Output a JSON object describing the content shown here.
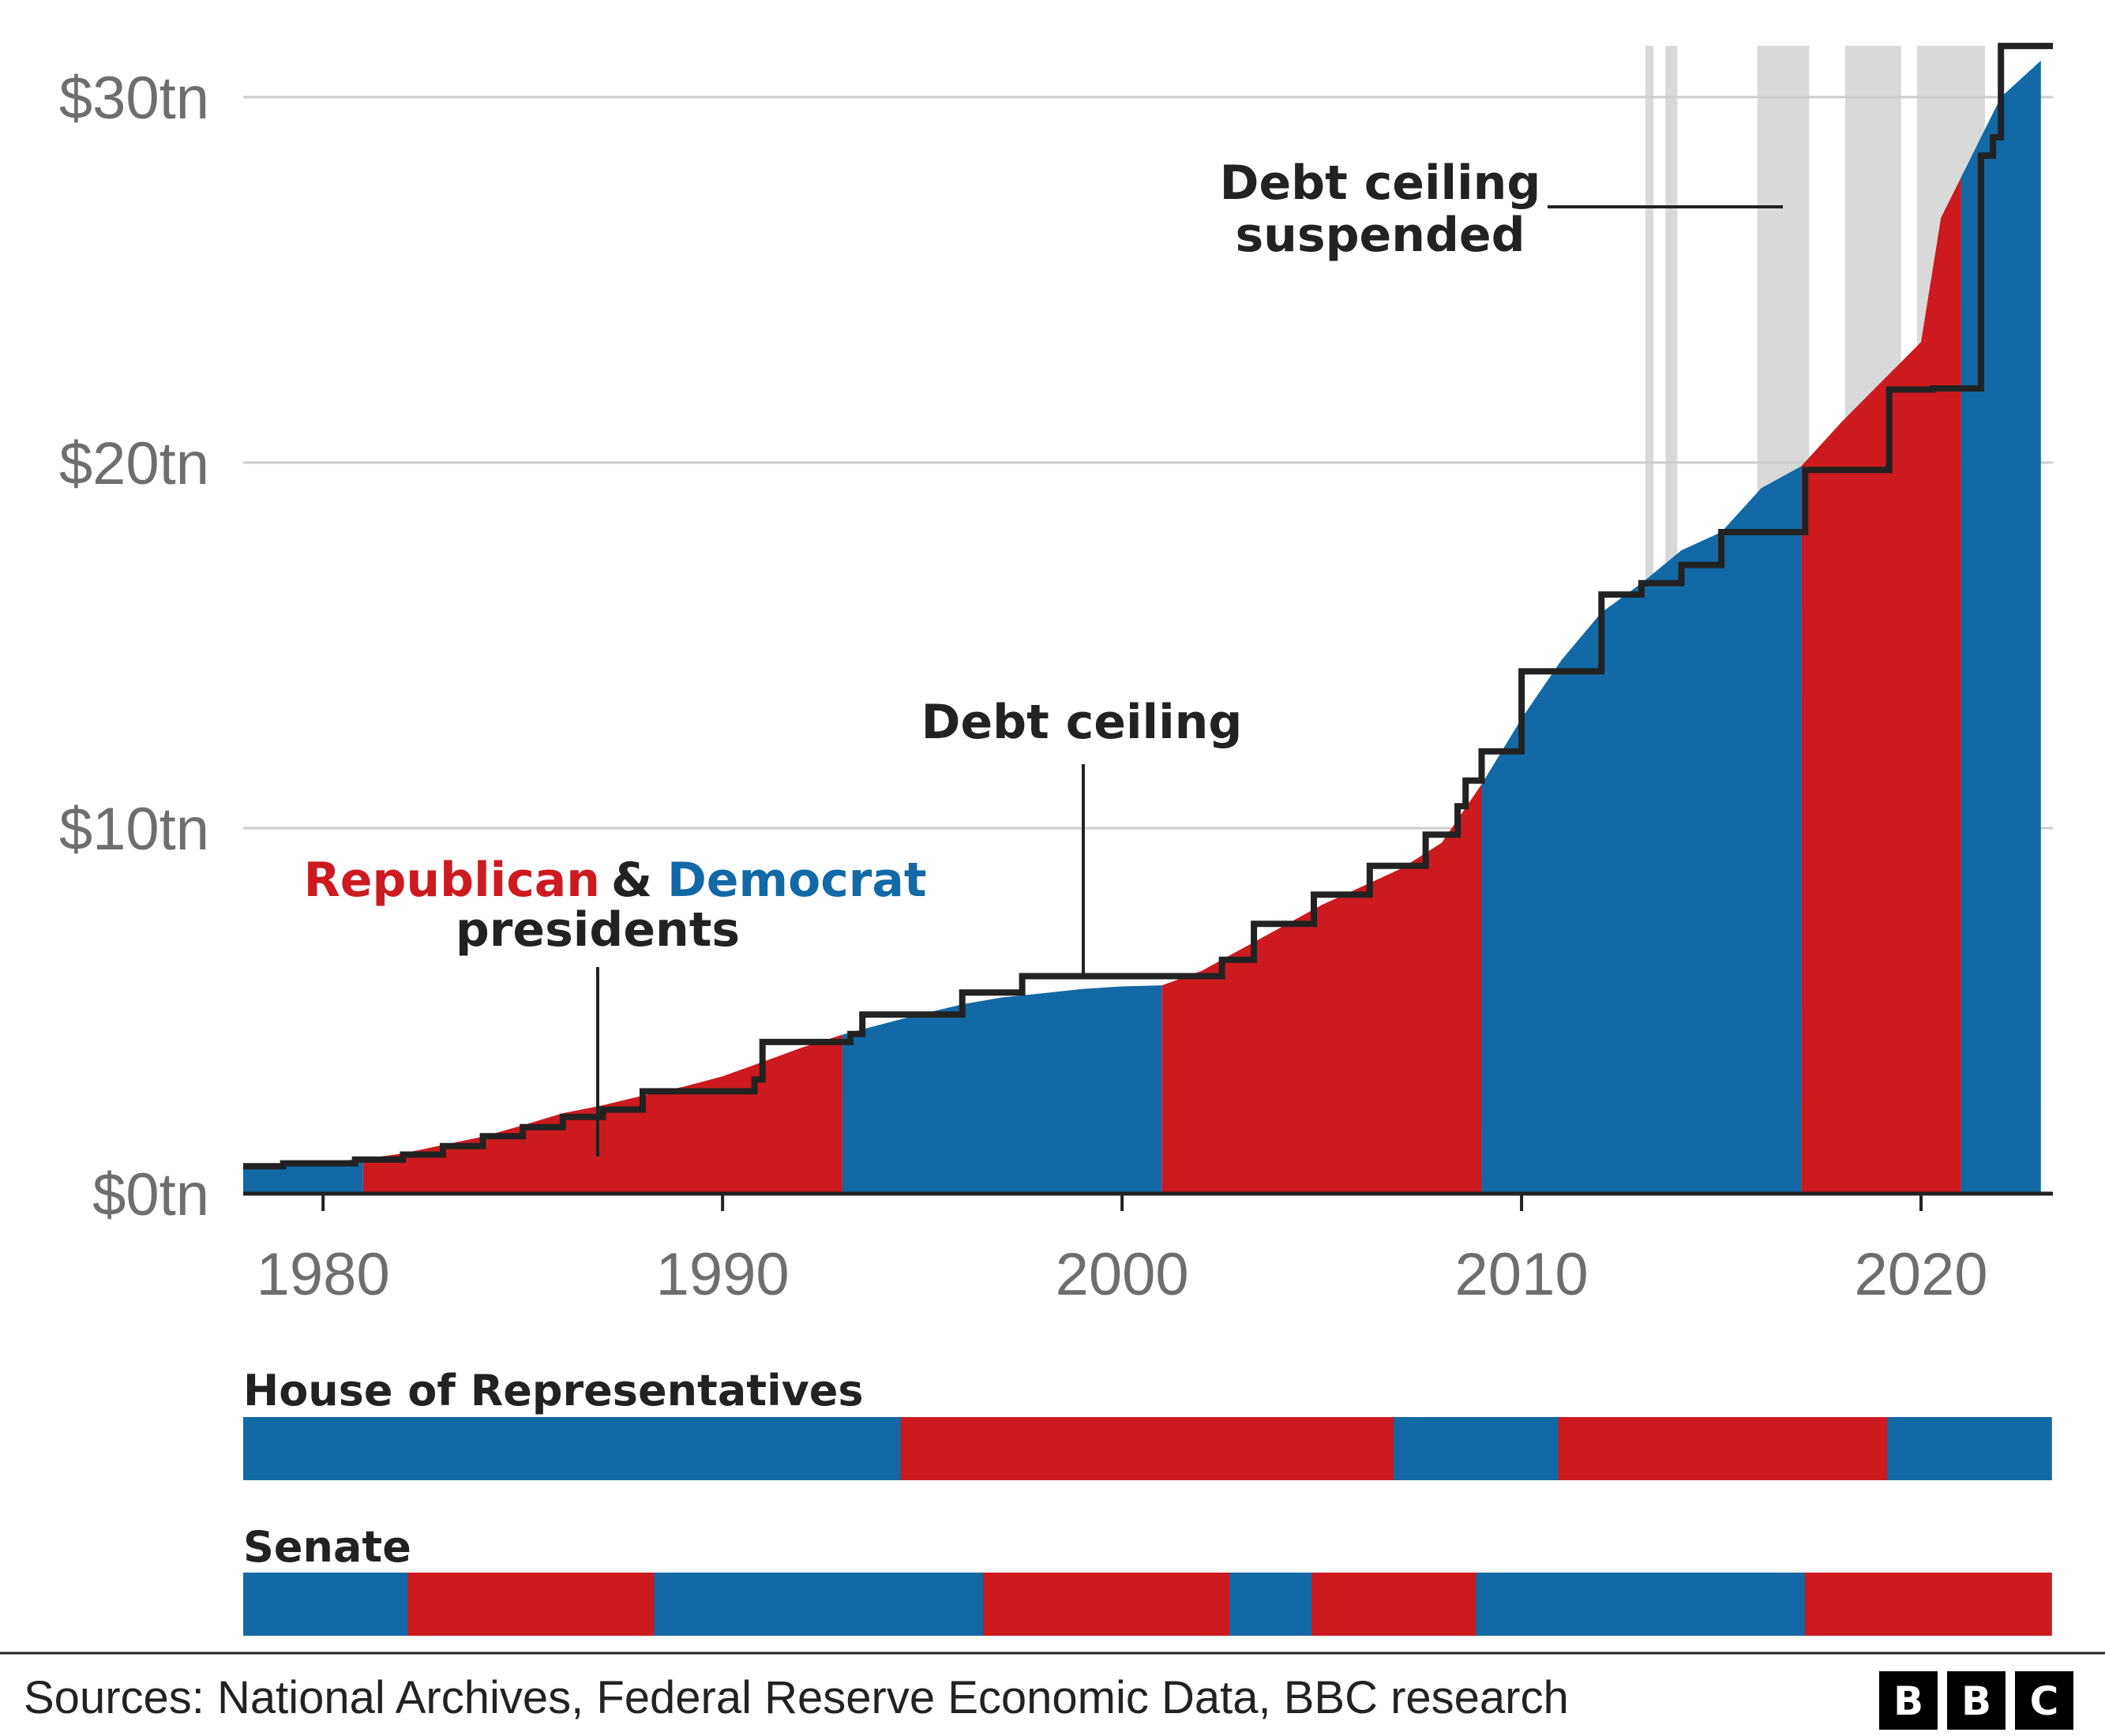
{
  "colors": {
    "republican": "#cc1a1f",
    "democrat": "#1269a6",
    "suspended": "#d9d9d9",
    "ceiling": "#222222",
    "grid": "#cccccc",
    "axis": "#222222",
    "text": "#222222",
    "tick": "#6e6e6e"
  },
  "chart_data": {
    "type": "area",
    "ylim": [
      0,
      30
    ],
    "xlim": [
      1978,
      2023.3
    ],
    "yticks": [
      0,
      10,
      20,
      30
    ],
    "ytick_labels": [
      "$0tn",
      "$10tn",
      "$20tn",
      "$30tn"
    ],
    "xticks": [
      1980,
      1990,
      2000,
      2010,
      2020
    ],
    "xtick_labels": [
      "1980",
      "1990",
      "2000",
      "2010",
      "2020"
    ],
    "grid": true,
    "debt": {
      "x": [
        1978,
        1979,
        1980,
        1981,
        1982,
        1983,
        1984,
        1985,
        1986,
        1987,
        1988,
        1989,
        1990,
        1991,
        1992,
        1993,
        1994,
        1995,
        1996,
        1997,
        1998,
        1999,
        2000,
        2001,
        2002,
        2003,
        2004,
        2005,
        2006,
        2007,
        2008,
        2009,
        2010,
        2011,
        2012,
        2013,
        2014,
        2015,
        2016,
        2017,
        2018,
        2019,
        2020,
        2020.5,
        2021,
        2022,
        2023
      ],
      "y": [
        0.75,
        0.8,
        0.86,
        0.95,
        1.1,
        1.33,
        1.56,
        1.87,
        2.2,
        2.42,
        2.68,
        2.92,
        3.21,
        3.6,
        4.0,
        4.35,
        4.64,
        4.92,
        5.18,
        5.37,
        5.48,
        5.6,
        5.67,
        5.7,
        6.1,
        6.7,
        7.3,
        7.9,
        8.4,
        8.9,
        9.6,
        11.2,
        13.0,
        14.6,
        15.9,
        16.7,
        17.6,
        18.1,
        19.3,
        19.9,
        21.1,
        22.2,
        23.3,
        26.7,
        27.8,
        30.0,
        31.0
      ]
    },
    "presidents": [
      {
        "party": "democrat",
        "start": 1978,
        "end": 1981
      },
      {
        "party": "republican",
        "start": 1981,
        "end": 1993
      },
      {
        "party": "democrat",
        "start": 1993,
        "end": 2001
      },
      {
        "party": "republican",
        "start": 2001,
        "end": 2009
      },
      {
        "party": "democrat",
        "start": 2009,
        "end": 2017
      },
      {
        "party": "republican",
        "start": 2017,
        "end": 2021
      },
      {
        "party": "democrat",
        "start": 2021,
        "end": 2023
      }
    ],
    "debt_ceiling": {
      "steps": [
        [
          1978,
          0.75
        ],
        [
          1979,
          0.83
        ],
        [
          1980.8,
          0.93
        ],
        [
          1982,
          1.07
        ],
        [
          1983,
          1.3
        ],
        [
          1984,
          1.57
        ],
        [
          1985,
          1.82
        ],
        [
          1986,
          2.1
        ],
        [
          1987,
          2.3
        ],
        [
          1988,
          2.8
        ],
        [
          1990.8,
          3.12
        ],
        [
          1991,
          4.15
        ],
        [
          1993.2,
          4.37
        ],
        [
          1993.5,
          4.9
        ],
        [
          1996,
          5.5
        ],
        [
          1997.5,
          5.95
        ],
        [
          2002.5,
          6.4
        ],
        [
          2003.3,
          7.38
        ],
        [
          2004.8,
          8.18
        ],
        [
          2006.2,
          8.97
        ],
        [
          2007.6,
          9.82
        ],
        [
          2008.4,
          10.6
        ],
        [
          2008.6,
          11.3
        ],
        [
          2009,
          12.1
        ],
        [
          2010,
          14.29
        ],
        [
          2012,
          16.39
        ],
        [
          2013,
          16.7
        ],
        [
          2014,
          17.2
        ],
        [
          2015,
          18.1
        ],
        [
          2017.1,
          19.8
        ],
        [
          2019.2,
          22.0
        ],
        [
          2020.3,
          22.03
        ],
        [
          2021.5,
          28.4
        ],
        [
          2021.8,
          28.9
        ],
        [
          2022,
          31.4
        ],
        [
          2023.3,
          31.4
        ]
      ]
    },
    "suspensions": [
      [
        2013.1,
        2013.3
      ],
      [
        2013.6,
        2013.9
      ],
      [
        2015.9,
        2017.2
      ],
      [
        2018.1,
        2019.5
      ],
      [
        2019.9,
        2021.6
      ]
    ],
    "annotations": {
      "presidents_republican": "Republican",
      "presidents_amp": "&",
      "presidents_democrat": "Democrat",
      "presidents_line2": "presidents",
      "debt_ceiling": "Debt ceiling",
      "suspended_line1": "Debt ceiling",
      "suspended_line2": "suspended"
    },
    "congress": {
      "house_label": "House of Representatives",
      "senate_label": "Senate",
      "start": 1979,
      "end": 2023,
      "house": [
        "democrat",
        "democrat",
        "democrat",
        "democrat",
        "democrat",
        "democrat",
        "democrat",
        "democrat",
        "republican",
        "republican",
        "republican",
        "republican",
        "republican",
        "republican",
        "democrat",
        "democrat",
        "republican",
        "republican",
        "republican",
        "republican",
        "democrat",
        "democrat"
      ],
      "senate": [
        "democrat",
        "democrat",
        "republican",
        "republican",
        "republican",
        "democrat",
        "democrat",
        "democrat",
        "democrat",
        "republican",
        "republican",
        "republican",
        "democrat",
        "republican",
        "republican",
        "democrat",
        "democrat",
        "democrat",
        "democrat",
        "republican",
        "republican",
        "republican"
      ]
    }
  },
  "source_text": "Sources: National Archives, Federal Reserve Economic Data, BBC research",
  "logo": {
    "letters": [
      "B",
      "B",
      "C"
    ]
  }
}
